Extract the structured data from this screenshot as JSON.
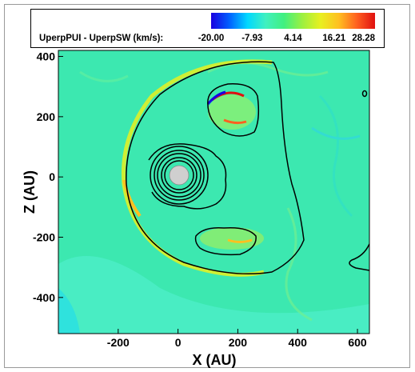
{
  "chart_data": {
    "type": "heatmap",
    "title": "",
    "colorbar": {
      "label": "UperpPUI - UperpSW (km/s):",
      "tick_labels": [
        "-20.00",
        "-7.93",
        "4.14",
        "16.21",
        "28.28"
      ],
      "range": [
        -20.0,
        28.28
      ],
      "colormap": [
        "#1a00e0",
        "#0060ff",
        "#00d8ff",
        "#40f0c0",
        "#40f080",
        "#9cf040",
        "#e8f020",
        "#ffc020",
        "#ff6020",
        "#e01010"
      ]
    },
    "xlabel": "X (AU)",
    "ylabel": "Z (AU)",
    "xlim": [
      -400,
      640
    ],
    "ylim": [
      -520,
      420
    ],
    "xticks": [
      -200,
      0,
      200,
      400,
      600
    ],
    "xtick_labels": [
      "-200",
      "0",
      "200",
      "400",
      "600"
    ],
    "yticks": [
      -400,
      -200,
      0,
      200,
      400
    ],
    "ytick_labels": [
      "-400",
      "-200",
      "0",
      "200",
      "400"
    ],
    "background_value_color": "#3ce8b0",
    "star_body_color": "#cfcfcf",
    "contour_color": "#000000"
  }
}
